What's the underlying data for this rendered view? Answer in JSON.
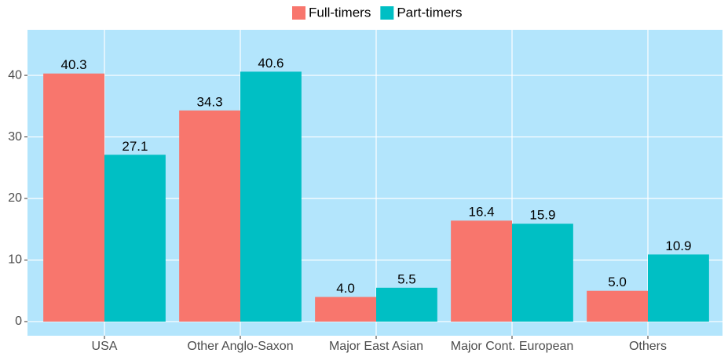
{
  "chart_data": {
    "type": "bar",
    "categories": [
      "USA",
      "Other Anglo-Saxon",
      "Major East Asian",
      "Major Cont. European",
      "Others"
    ],
    "series": [
      {
        "name": "Full-timers",
        "color": "#f8766d",
        "values": [
          40.3,
          34.3,
          4.0,
          16.4,
          5.0
        ],
        "value_labels": [
          "40.3",
          "34.3",
          "4.0",
          "16.4",
          "5.0"
        ]
      },
      {
        "name": "Part-timers",
        "color": "#00bfc4",
        "values": [
          27.1,
          40.6,
          5.5,
          15.9,
          10.9
        ],
        "value_labels": [
          "27.1",
          "40.6",
          "5.5",
          "15.9",
          "10.9"
        ]
      }
    ],
    "ylim": [
      -2.3,
      47.4
    ],
    "yticks": [
      0,
      10,
      20,
      30,
      40
    ],
    "grid": true,
    "legend": "top"
  }
}
